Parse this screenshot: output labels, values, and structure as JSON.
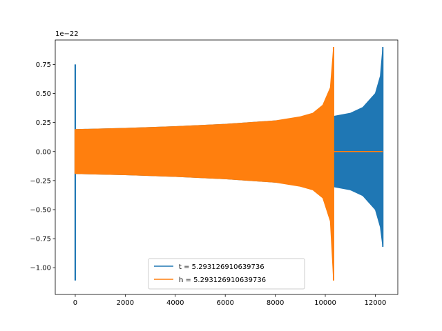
{
  "chart_data": {
    "type": "line",
    "title": "",
    "xlabel": "",
    "ylabel": "",
    "offset_text": "1e−22",
    "xlim": [
      -800,
      12900
    ],
    "ylim": [
      -1.23,
      0.96
    ],
    "x_ticks": [
      0,
      2000,
      4000,
      6000,
      8000,
      10000,
      12000
    ],
    "x_tick_labels": [
      "0",
      "2000",
      "4000",
      "6000",
      "8000",
      "10000",
      "12000"
    ],
    "y_ticks": [
      0.75,
      0.5,
      0.25,
      0.0,
      -0.25,
      -0.5,
      -0.75,
      -1.0
    ],
    "y_tick_labels": [
      "0.75",
      "0.50",
      "0.25",
      "0.00",
      "−0.25",
      "−0.50",
      "−0.75",
      "−1.00"
    ],
    "grid": false,
    "legend_position": "lower center",
    "series": [
      {
        "name": "t = 5.293126910639736",
        "color": "#1f77b4",
        "style": "dense oscillation (envelope)",
        "initial_spike": {
          "x": 0,
          "max": 0.75,
          "min": -1.11
        },
        "envelope_upper": [
          [
            0,
            0.19
          ],
          [
            2000,
            0.2
          ],
          [
            4000,
            0.215
          ],
          [
            6000,
            0.235
          ],
          [
            8000,
            0.265
          ],
          [
            10000,
            0.29
          ],
          [
            11000,
            0.33
          ],
          [
            11500,
            0.38
          ],
          [
            12000,
            0.5
          ],
          [
            12200,
            0.65
          ],
          [
            12300,
            0.9
          ]
        ],
        "envelope_lower": [
          [
            0,
            -0.19
          ],
          [
            2000,
            -0.2
          ],
          [
            4000,
            -0.215
          ],
          [
            6000,
            -0.235
          ],
          [
            8000,
            -0.265
          ],
          [
            10000,
            -0.29
          ],
          [
            11000,
            -0.33
          ],
          [
            11500,
            -0.38
          ],
          [
            12000,
            -0.5
          ],
          [
            12200,
            -0.65
          ],
          [
            12300,
            -0.82
          ]
        ]
      },
      {
        "name": "h = 5.293126910639736",
        "color": "#ff7f0e",
        "style": "dense oscillation (envelope)",
        "initial_spike": {
          "x": 0,
          "max": 0.19,
          "min": -0.19
        },
        "envelope_upper": [
          [
            0,
            0.19
          ],
          [
            2000,
            0.2
          ],
          [
            4000,
            0.215
          ],
          [
            6000,
            0.235
          ],
          [
            8000,
            0.265
          ],
          [
            9000,
            0.3
          ],
          [
            9500,
            0.33
          ],
          [
            9900,
            0.4
          ],
          [
            10200,
            0.55
          ],
          [
            10330,
            0.9
          ]
        ],
        "envelope_lower": [
          [
            0,
            -0.19
          ],
          [
            2000,
            -0.2
          ],
          [
            4000,
            -0.215
          ],
          [
            6000,
            -0.235
          ],
          [
            8000,
            -0.265
          ],
          [
            9000,
            -0.3
          ],
          [
            9500,
            -0.33
          ],
          [
            9900,
            -0.4
          ],
          [
            10200,
            -0.6
          ],
          [
            10330,
            -1.11
          ]
        ],
        "flat_after": {
          "x_start": 10350,
          "x_end": 12300,
          "y": 0.0
        }
      }
    ]
  }
}
